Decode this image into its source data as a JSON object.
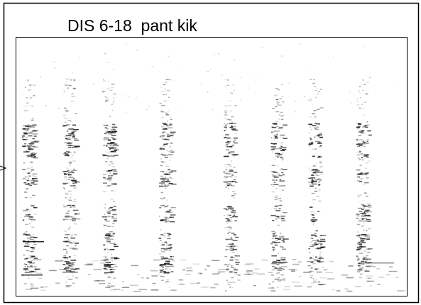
{
  "title": "DIS 6-18  pant kik"
}
